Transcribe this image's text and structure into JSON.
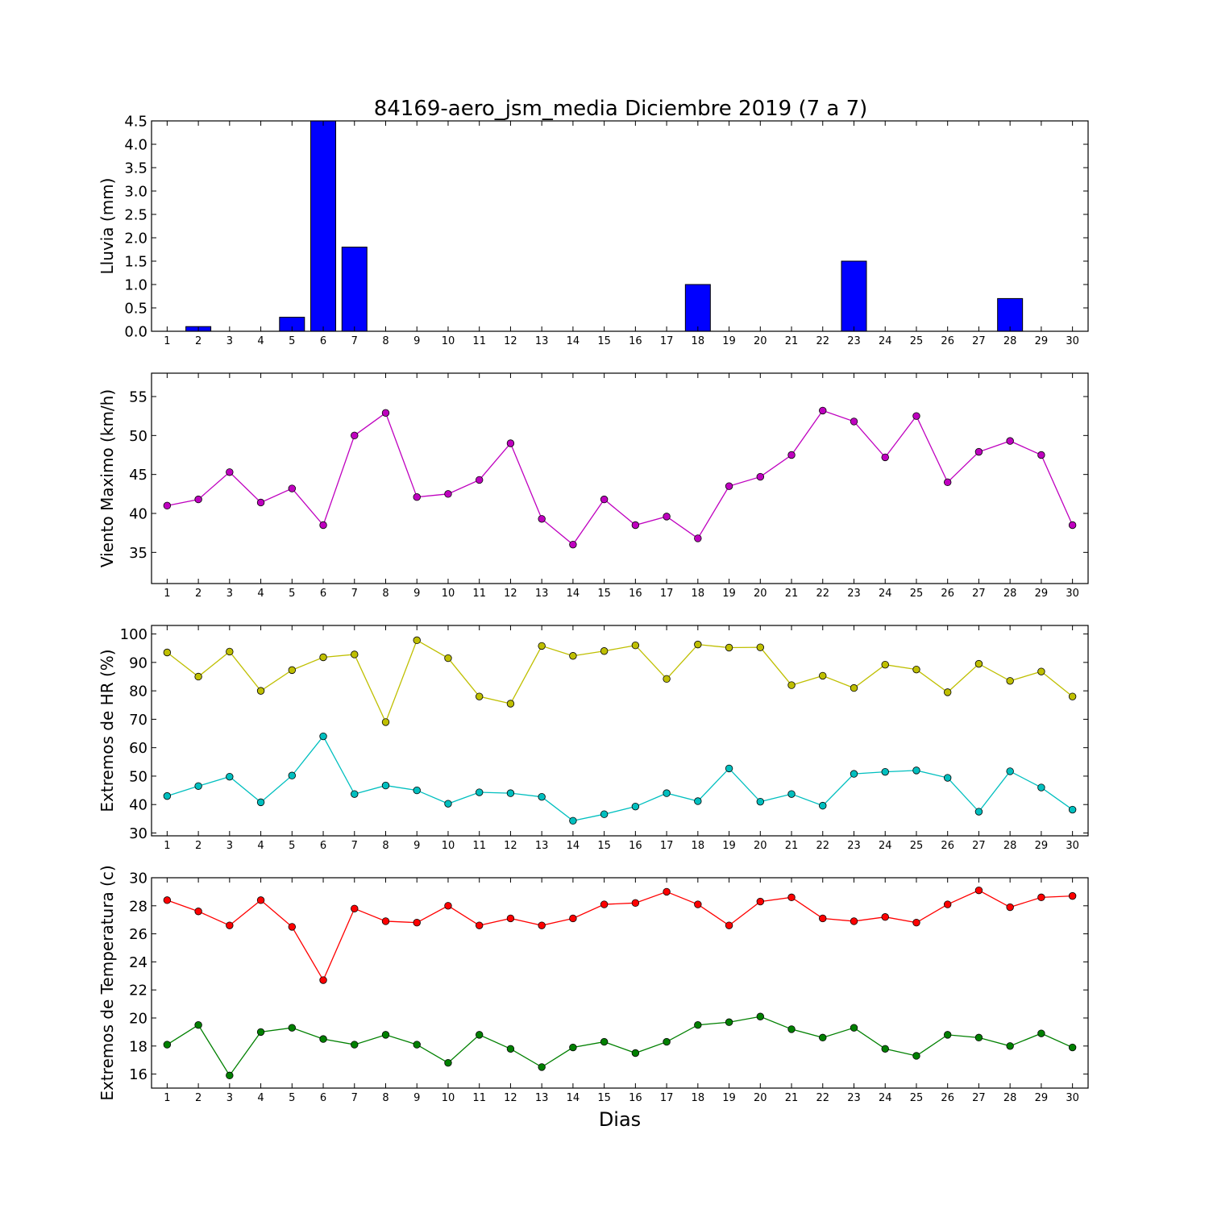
{
  "figure_title": "84169-aero_jsm_media Diciembre 2019  (7 a 7)",
  "xlabel": "Dias",
  "chart_data": [
    {
      "type": "bar",
      "title": "84169-aero_jsm_media Diciembre 2019  (7 a 7)",
      "ylabel": "Lluvia (mm)",
      "xlim": [
        0.5,
        30.5
      ],
      "ylim": [
        0,
        4.5
      ],
      "yticks": [
        0.0,
        0.5,
        1.0,
        1.5,
        2.0,
        2.5,
        3.0,
        3.5,
        4.0,
        4.5
      ],
      "ytick_labels": [
        "0.0",
        "0.5",
        "1.0",
        "1.5",
        "2.0",
        "2.5",
        "3.0",
        "3.5",
        "4.0",
        "4.5"
      ],
      "x": [
        1,
        2,
        3,
        4,
        5,
        6,
        7,
        8,
        9,
        10,
        11,
        12,
        13,
        14,
        15,
        16,
        17,
        18,
        19,
        20,
        21,
        22,
        23,
        24,
        25,
        26,
        27,
        28,
        29,
        30
      ],
      "series": [
        {
          "color": "#0000ff",
          "values": [
            0,
            0.1,
            0,
            0,
            0.3,
            4.5,
            1.8,
            0,
            0,
            0,
            0,
            0,
            0,
            0,
            0,
            0,
            0,
            1.0,
            0,
            0,
            0,
            0,
            1.5,
            0,
            0,
            0,
            0,
            0.7,
            0,
            0
          ]
        }
      ]
    },
    {
      "type": "line",
      "ylabel": "Viento Maximo (km/h)",
      "xlim": [
        0.5,
        30.5
      ],
      "ylim": [
        31,
        58
      ],
      "yticks": [
        35,
        40,
        45,
        50,
        55
      ],
      "ytick_labels": [
        "35",
        "40",
        "45",
        "50",
        "55"
      ],
      "x": [
        1,
        2,
        3,
        4,
        5,
        6,
        7,
        8,
        9,
        10,
        11,
        12,
        13,
        14,
        15,
        16,
        17,
        18,
        19,
        20,
        21,
        22,
        23,
        24,
        25,
        26,
        27,
        28,
        29,
        30
      ],
      "series": [
        {
          "color": "#bf00bf",
          "values": [
            41.0,
            41.8,
            45.3,
            41.4,
            43.2,
            38.5,
            50.0,
            52.9,
            42.1,
            42.5,
            44.3,
            49.0,
            39.3,
            36.0,
            41.8,
            38.5,
            39.6,
            36.8,
            43.5,
            44.7,
            47.5,
            53.2,
            51.8,
            47.2,
            52.5,
            44.0,
            47.9,
            49.3,
            47.5,
            38.5
          ]
        }
      ]
    },
    {
      "type": "line",
      "ylabel": "Extremos de HR (%)",
      "xlim": [
        0.5,
        30.5
      ],
      "ylim": [
        29,
        103
      ],
      "yticks": [
        30,
        40,
        50,
        60,
        70,
        80,
        90,
        100
      ],
      "ytick_labels": [
        "30",
        "40",
        "50",
        "60",
        "70",
        "80",
        "90",
        "100"
      ],
      "x": [
        1,
        2,
        3,
        4,
        5,
        6,
        7,
        8,
        9,
        10,
        11,
        12,
        13,
        14,
        15,
        16,
        17,
        18,
        19,
        20,
        21,
        22,
        23,
        24,
        25,
        26,
        27,
        28,
        29,
        30
      ],
      "series": [
        {
          "color": "#bfbf00",
          "values": [
            93.5,
            85.0,
            93.8,
            80.0,
            87.3,
            91.8,
            92.8,
            69.0,
            97.8,
            91.5,
            78.0,
            75.5,
            95.8,
            92.3,
            94.0,
            96.0,
            84.2,
            96.3,
            95.2,
            95.3,
            82.0,
            85.3,
            81.0,
            89.2,
            87.5,
            79.5,
            89.5,
            83.5,
            86.8,
            78.0
          ]
        },
        {
          "color": "#00bfbf",
          "values": [
            43.0,
            46.5,
            49.8,
            40.8,
            50.2,
            64.0,
            43.7,
            46.7,
            45.0,
            40.3,
            44.3,
            44.0,
            42.7,
            34.3,
            36.6,
            39.3,
            44.0,
            41.2,
            52.7,
            41.0,
            43.7,
            39.6,
            50.8,
            51.5,
            52.0,
            49.4,
            37.5,
            51.7,
            46.0,
            38.2
          ]
        }
      ]
    },
    {
      "type": "line",
      "ylabel": "Extremos de Temperatura (c)",
      "xlabel": "Dias",
      "xlim": [
        0.5,
        30.5
      ],
      "ylim": [
        15,
        30
      ],
      "yticks": [
        16,
        18,
        20,
        22,
        24,
        26,
        28,
        30
      ],
      "ytick_labels": [
        "16",
        "18",
        "20",
        "22",
        "24",
        "26",
        "28",
        "30"
      ],
      "x": [
        1,
        2,
        3,
        4,
        5,
        6,
        7,
        8,
        9,
        10,
        11,
        12,
        13,
        14,
        15,
        16,
        17,
        18,
        19,
        20,
        21,
        22,
        23,
        24,
        25,
        26,
        27,
        28,
        29,
        30
      ],
      "series": [
        {
          "color": "#ff0000",
          "values": [
            28.4,
            27.6,
            26.6,
            28.4,
            26.5,
            22.7,
            27.8,
            26.9,
            26.8,
            28.0,
            26.6,
            27.1,
            26.6,
            27.1,
            28.1,
            28.2,
            29.0,
            28.1,
            26.6,
            28.3,
            28.6,
            27.1,
            26.9,
            27.2,
            26.8,
            28.1,
            29.1,
            27.9,
            28.6,
            28.7
          ]
        },
        {
          "color": "#008000",
          "values": [
            18.1,
            19.5,
            15.9,
            19.0,
            19.3,
            18.5,
            18.1,
            18.8,
            18.1,
            16.8,
            18.8,
            17.8,
            16.5,
            17.9,
            18.3,
            17.5,
            18.3,
            19.5,
            19.7,
            20.1,
            19.2,
            18.6,
            19.3,
            17.8,
            17.3,
            18.8,
            18.6,
            18.0,
            18.9,
            17.9
          ]
        }
      ]
    }
  ]
}
